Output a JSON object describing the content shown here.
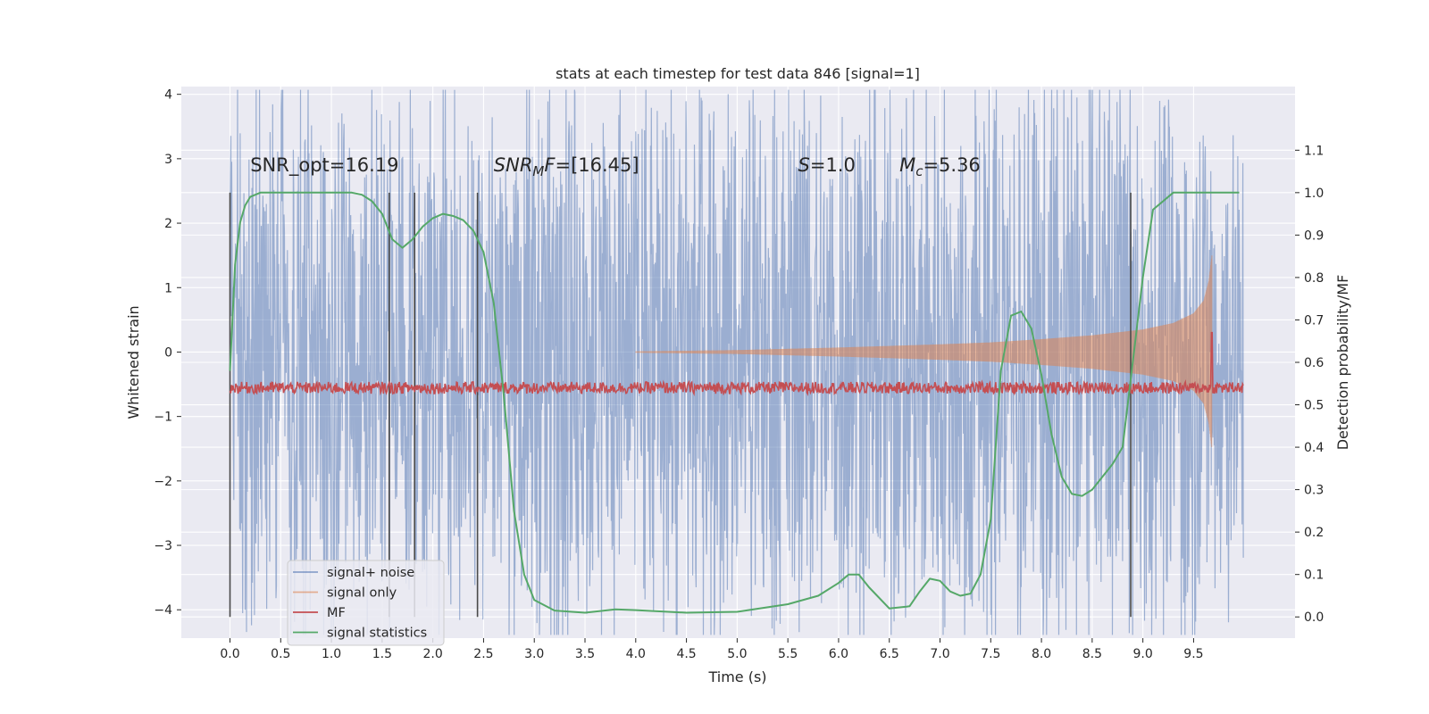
{
  "chart_data": {
    "type": "line",
    "title": "stats at each timestep for test data 846 [signal=1]",
    "xlabel": "Time (s)",
    "ylabel": "Whitened strain",
    "ylabel_right": "Detection probability/MF",
    "xlim": [
      -0.48,
      10.5
    ],
    "ylim": [
      -4.44,
      4.12
    ],
    "ylim_right": [
      -0.05,
      1.25
    ],
    "x_ticks": [
      0.0,
      0.5,
      1.0,
      1.5,
      2.0,
      2.5,
      3.0,
      3.5,
      4.0,
      4.5,
      5.0,
      5.5,
      6.0,
      6.5,
      7.0,
      7.5,
      8.0,
      8.5,
      9.0,
      9.5
    ],
    "y_ticks": [
      -4,
      -3,
      -2,
      -1,
      0,
      1,
      2,
      3,
      4
    ],
    "y_ticks_right": [
      0.0,
      0.1,
      0.2,
      0.3,
      0.4,
      0.5,
      0.6,
      0.7,
      0.8,
      0.9,
      1.0,
      1.1
    ],
    "grid": true,
    "legend_placement": "lower-left",
    "annotations": [
      {
        "text": "SNR_opt=16.19",
        "x": 0.2,
        "y": 2.9
      },
      {
        "html": "SNR<sub>M</sub>F=[16.45]",
        "base": "SNR",
        "sub": "M",
        "tail": "F=[16.45]",
        "italic": true,
        "x": 2.6,
        "y": 2.9
      },
      {
        "base": "S",
        "tail": "=1.0",
        "italic_base": true,
        "x": 5.6,
        "y": 2.9
      },
      {
        "base": "M",
        "sub": "c",
        "tail": "=5.36",
        "italic_base": true,
        "x": 6.6,
        "y": 2.9
      }
    ],
    "vertical_lines": [
      0.0,
      1.57,
      1.82,
      2.44,
      8.88
    ],
    "series": [
      {
        "name": "signal+ noise",
        "color": "#4c72b0",
        "envelope": {
          "x": [
            0.0,
            0.5,
            1.0,
            1.5,
            2.0,
            2.5,
            3.0,
            3.5,
            4.0,
            4.5,
            5.0,
            5.5,
            6.0,
            6.5,
            7.0,
            7.5,
            8.0,
            8.5,
            9.0,
            9.5,
            9.99
          ],
          "upper": [
            2.7,
            2.8,
            3.0,
            2.9,
            2.8,
            2.6,
            2.9,
            2.7,
            2.8,
            2.9,
            2.7,
            2.9,
            2.8,
            2.9,
            2.8,
            3.0,
            3.2,
            3.0,
            2.9,
            2.8,
            2.3
          ],
          "lower": [
            -2.6,
            -2.9,
            -3.0,
            -2.9,
            -2.8,
            -2.7,
            -3.2,
            -3.0,
            -3.1,
            -3.3,
            -3.0,
            -2.9,
            -3.0,
            -3.0,
            -3.1,
            -3.3,
            -3.5,
            -3.0,
            -3.0,
            -3.1,
            -2.6
          ]
        }
      },
      {
        "name": "signal only",
        "color": "#dd8452",
        "envelope": {
          "x": [
            4.0,
            5.0,
            6.0,
            7.0,
            7.5,
            8.0,
            8.5,
            9.0,
            9.3,
            9.5,
            9.6,
            9.65,
            9.68
          ],
          "amplitude": [
            0.01,
            0.03,
            0.07,
            0.12,
            0.15,
            0.2,
            0.26,
            0.35,
            0.45,
            0.6,
            0.8,
            1.1,
            1.5
          ]
        }
      },
      {
        "name": "MF",
        "color": "#c44e52",
        "baseline_right": 0.54,
        "peak": {
          "x": 9.68,
          "y": 0.67
        }
      },
      {
        "name": "signal statistics",
        "color": "#55a868",
        "x": [
          0.0,
          0.05,
          0.1,
          0.15,
          0.2,
          0.3,
          0.5,
          0.8,
          1.0,
          1.2,
          1.3,
          1.4,
          1.5,
          1.6,
          1.7,
          1.8,
          1.9,
          2.0,
          2.1,
          2.2,
          2.3,
          2.4,
          2.5,
          2.6,
          2.7,
          2.8,
          2.9,
          3.0,
          3.2,
          3.5,
          3.8,
          4.0,
          4.5,
          5.0,
          5.5,
          5.8,
          6.0,
          6.1,
          6.2,
          6.3,
          6.5,
          6.7,
          6.8,
          6.9,
          7.0,
          7.1,
          7.2,
          7.3,
          7.4,
          7.5,
          7.6,
          7.7,
          7.8,
          7.9,
          8.0,
          8.1,
          8.2,
          8.3,
          8.4,
          8.5,
          8.6,
          8.7,
          8.8,
          8.9,
          9.0,
          9.1,
          9.3,
          9.5,
          9.7,
          9.9,
          9.95
        ],
        "y": [
          0.58,
          0.83,
          0.93,
          0.97,
          0.99,
          1.0,
          1.0,
          1.0,
          1.0,
          1.0,
          0.995,
          0.98,
          0.95,
          0.89,
          0.87,
          0.89,
          0.92,
          0.94,
          0.95,
          0.945,
          0.935,
          0.91,
          0.86,
          0.74,
          0.52,
          0.25,
          0.1,
          0.04,
          0.015,
          0.01,
          0.018,
          0.016,
          0.01,
          0.012,
          0.03,
          0.05,
          0.08,
          0.1,
          0.1,
          0.07,
          0.02,
          0.025,
          0.06,
          0.09,
          0.085,
          0.06,
          0.05,
          0.055,
          0.1,
          0.23,
          0.58,
          0.71,
          0.72,
          0.68,
          0.57,
          0.43,
          0.33,
          0.29,
          0.285,
          0.3,
          0.33,
          0.36,
          0.4,
          0.6,
          0.8,
          0.96,
          1.0,
          1.0,
          1.0,
          1.0,
          1.0
        ]
      }
    ]
  }
}
